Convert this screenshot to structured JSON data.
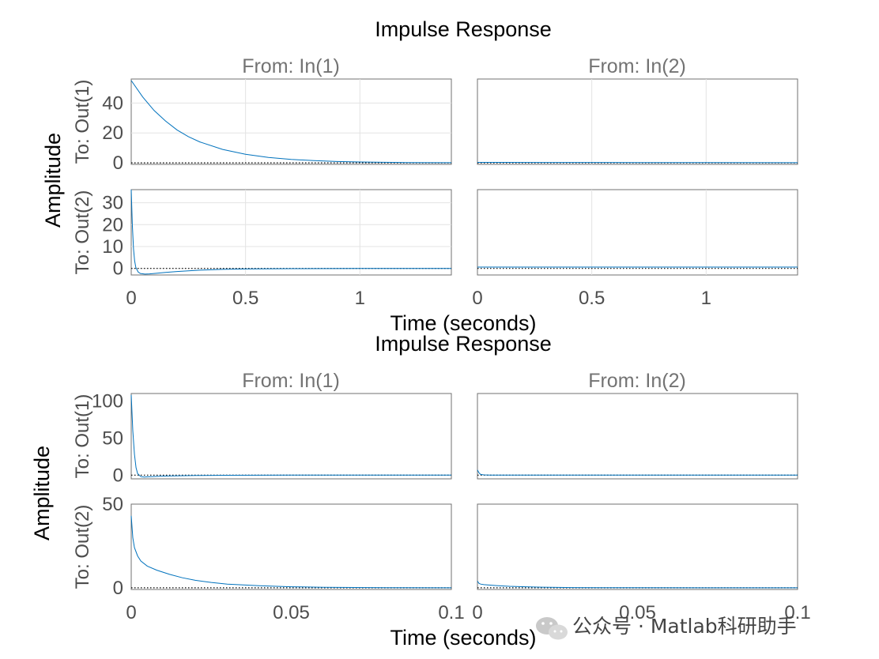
{
  "watermark": {
    "text": "公众号 · Matlab科研助手",
    "icon": "wechat-icon"
  },
  "colors": {
    "line": "#0072bd",
    "axis": "#707070",
    "grid": "#e3e3e3",
    "label_gray": "#737373",
    "tick_gray": "#4d4d4d"
  },
  "chart_data": [
    {
      "type": "line",
      "title": "Impulse Response",
      "xlabel": "Time (seconds)",
      "ylabel": "Amplitude",
      "grid": true,
      "xlim": [
        0,
        1.4
      ],
      "xticks": [
        "0",
        "0.5",
        "1"
      ],
      "input_labels": [
        "From: In(1)",
        "From: In(2)"
      ],
      "output_labels": [
        "To: Out(1)",
        "To: Out(2)"
      ],
      "subplots": [
        {
          "row": 1,
          "col": 1,
          "ylim": [
            -1,
            56
          ],
          "yticks": [
            0,
            20,
            40
          ],
          "x": [
            0,
            0.05,
            0.1,
            0.15,
            0.2,
            0.25,
            0.3,
            0.4,
            0.5,
            0.6,
            0.7,
            0.8,
            0.9,
            1.0,
            1.1,
            1.2,
            1.4
          ],
          "y": [
            55,
            44,
            35,
            28,
            22,
            17.5,
            14,
            9,
            5.7,
            3.6,
            2.3,
            1.5,
            0.9,
            0.6,
            0.35,
            0.2,
            0.1
          ]
        },
        {
          "row": 1,
          "col": 2,
          "ylim": [
            -1,
            56
          ],
          "yticks": [],
          "x": [
            0,
            0.3,
            0.7,
            1.0,
            1.4
          ],
          "y": [
            0.3,
            0.25,
            0.2,
            0.15,
            0.1
          ]
        },
        {
          "row": 2,
          "col": 1,
          "ylim": [
            -3,
            36
          ],
          "yticks": [
            0,
            10,
            20,
            30
          ],
          "x": [
            0,
            0.005,
            0.01,
            0.015,
            0.02,
            0.03,
            0.04,
            0.06,
            0.08,
            0.1,
            0.15,
            0.2,
            0.3,
            0.4,
            0.5,
            0.7,
            1.0,
            1.4
          ],
          "y": [
            36,
            20,
            9,
            3.5,
            0.5,
            -1.6,
            -2.3,
            -2.6,
            -2.5,
            -2.3,
            -1.8,
            -1.4,
            -0.8,
            -0.45,
            -0.25,
            -0.1,
            0,
            0
          ]
        },
        {
          "row": 2,
          "col": 2,
          "ylim": [
            -3,
            36
          ],
          "yticks": [],
          "x": [
            0,
            0.5,
            1.0,
            1.4
          ],
          "y": [
            0.6,
            0.6,
            0.6,
            0.6
          ]
        }
      ]
    },
    {
      "type": "line",
      "title": "Impulse Response",
      "xlabel": "Time (seconds)",
      "ylabel": "Amplitude",
      "grid": false,
      "xlim": [
        0,
        0.1
      ],
      "xticks": [
        "0",
        "0.05",
        "0.1"
      ],
      "input_labels": [
        "From: In(1)",
        "From: In(2)"
      ],
      "output_labels": [
        "To: Out(1)",
        "To: Out(2)"
      ],
      "subplots": [
        {
          "row": 1,
          "col": 1,
          "ylim": [
            -5,
            110
          ],
          "yticks": [
            0,
            50,
            100
          ],
          "x": [
            0,
            0.0005,
            0.001,
            0.0015,
            0.002,
            0.003,
            0.004,
            0.006,
            0.01,
            0.015,
            0.02,
            0.03,
            0.05,
            0.1
          ],
          "y": [
            108,
            60,
            28,
            10,
            2,
            -2,
            -2.5,
            -2,
            -1.3,
            -0.8,
            -0.5,
            -0.2,
            0,
            0
          ]
        },
        {
          "row": 1,
          "col": 2,
          "ylim": [
            -5,
            110
          ],
          "yticks": [],
          "x": [
            0,
            0.0005,
            0.001,
            0.002,
            0.004,
            0.01,
            0.1
          ],
          "y": [
            7,
            3,
            1,
            0.3,
            0.1,
            0,
            0
          ]
        },
        {
          "row": 2,
          "col": 1,
          "ylim": [
            -1,
            50
          ],
          "yticks": [
            0,
            50
          ],
          "x": [
            0,
            0.0005,
            0.001,
            0.002,
            0.003,
            0.005,
            0.008,
            0.012,
            0.016,
            0.02,
            0.025,
            0.03,
            0.04,
            0.05,
            0.06,
            0.08,
            0.1
          ],
          "y": [
            43,
            30,
            24,
            19,
            16,
            13,
            10.5,
            8,
            6,
            4.5,
            3.2,
            2.2,
            1.2,
            0.6,
            0.3,
            0.1,
            0
          ]
        },
        {
          "row": 2,
          "col": 2,
          "ylim": [
            -1,
            50
          ],
          "yticks": [],
          "x": [
            0,
            0.0005,
            0.001,
            0.002,
            0.004,
            0.006,
            0.01,
            0.015,
            0.02,
            0.03,
            0.05,
            0.1
          ],
          "y": [
            4,
            2.6,
            2.2,
            1.9,
            1.6,
            1.3,
            0.9,
            0.6,
            0.35,
            0.15,
            0.05,
            0
          ]
        }
      ]
    }
  ]
}
